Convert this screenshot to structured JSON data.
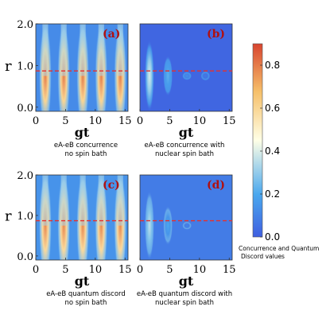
{
  "chart_data": {
    "type": "heatmap",
    "colorbar": {
      "range": [
        0.0,
        0.9
      ],
      "ticks": [
        "0.0",
        "0.2",
        "0.4",
        "0.6",
        "0.8"
      ],
      "tick_values": [
        0.0,
        0.2,
        0.4,
        0.6,
        0.8
      ],
      "label_line1": "Concurrence and Quantum",
      "label_line2": "Discord values",
      "colors": [
        "#3f5fe0",
        "#4aa8ee",
        "#ffffe6",
        "#f6c06a",
        "#d8452f"
      ]
    },
    "reference_line_color": "#e8302a",
    "panels": [
      {
        "id": "a",
        "label": "(a)",
        "label_color": "#b01010",
        "xlabel": "gt",
        "ylabel": "r",
        "xlim": [
          0,
          15.5
        ],
        "ylim": [
          -0.1,
          2.0
        ],
        "xticks": [
          "0",
          "5",
          "10",
          "15"
        ],
        "xtick_values": [
          0,
          5,
          10,
          15
        ],
        "yticks": [
          "2.0",
          "1.0",
          "0.0"
        ],
        "ytick_values": [
          2.0,
          1.0,
          0.0
        ],
        "reference_line_r": 0.87,
        "peak_gt": [
          1.6,
          4.7,
          7.9,
          11.0,
          14.2
        ],
        "peak_value": 0.8,
        "decay": 0.0,
        "background_value": 0.12,
        "caption_line1": "eA-eB concurrence",
        "caption_line2": "no spin bath"
      },
      {
        "id": "b",
        "label": "(b)",
        "label_color": "#b01010",
        "xlabel": "gt",
        "ylabel": "",
        "xlim": [
          0,
          15.5
        ],
        "ylim": [
          -0.1,
          2.0
        ],
        "xticks": [
          "0",
          "5",
          "10",
          "15"
        ],
        "xtick_values": [
          0,
          5,
          10,
          15
        ],
        "yticks": [],
        "ytick_values": [],
        "reference_line_r": 0.87,
        "peak_gt": [
          1.6,
          4.7,
          7.9,
          11.0
        ],
        "peak_value": 0.42,
        "decay": 0.18,
        "background_value": 0.02,
        "caption_line1": "eA-eB concurrence with",
        "caption_line2": "nuclear spin bath"
      },
      {
        "id": "c",
        "label": "(c)",
        "label_color": "#b01010",
        "xlabel": "gt",
        "ylabel": "r",
        "xlim": [
          0,
          15.5
        ],
        "ylim": [
          -0.1,
          2.0
        ],
        "xticks": [
          "0",
          "5",
          "10",
          "15"
        ],
        "xtick_values": [
          0,
          5,
          10,
          15
        ],
        "yticks": [
          "2.0",
          "1.0",
          "0.0"
        ],
        "ytick_values": [
          2.0,
          1.0,
          0.0
        ],
        "reference_line_r": 0.87,
        "peak_gt": [
          1.6,
          4.7,
          7.9,
          11.0,
          14.2
        ],
        "peak_value": 0.78,
        "decay": 0.0,
        "background_value": 0.14,
        "caption_line1": "eA-eB quantum discord",
        "caption_line2": "no spin bath"
      },
      {
        "id": "d",
        "label": "(d)",
        "label_color": "#b01010",
        "xlabel": "gt",
        "ylabel": "",
        "xlim": [
          0,
          15.5
        ],
        "ylim": [
          -0.1,
          2.0
        ],
        "xticks": [
          "0",
          "5",
          "10",
          "15"
        ],
        "xtick_values": [
          0,
          5,
          10,
          15
        ],
        "yticks": [],
        "ytick_values": [],
        "reference_line_r": 0.87,
        "peak_gt": [
          1.6,
          4.7,
          7.9
        ],
        "peak_value": 0.4,
        "decay": 0.2,
        "background_value": 0.08,
        "caption_line1": "eA-eB quantum discord with",
        "caption_line2": "nuclear spin bath"
      }
    ]
  }
}
